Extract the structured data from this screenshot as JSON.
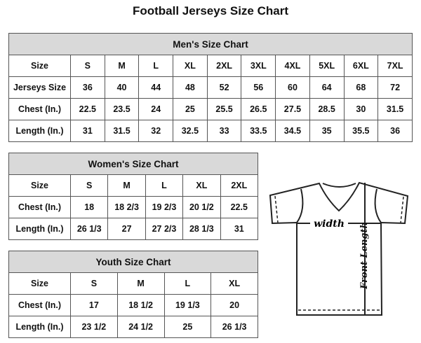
{
  "title": "Football Jerseys Size Chart",
  "men": {
    "caption": "Men's Size Chart",
    "rows": [
      [
        "Size",
        "S",
        "M",
        "L",
        "XL",
        "2XL",
        "3XL",
        "4XL",
        "5XL",
        "6XL",
        "7XL"
      ],
      [
        "Jerseys Size",
        "36",
        "40",
        "44",
        "48",
        "52",
        "56",
        "60",
        "64",
        "68",
        "72"
      ],
      [
        "Chest (In.)",
        "22.5",
        "23.5",
        "24",
        "25",
        "25.5",
        "26.5",
        "27.5",
        "28.5",
        "30",
        "31.5"
      ],
      [
        "Length (In.)",
        "31",
        "31.5",
        "32",
        "32.5",
        "33",
        "33.5",
        "34.5",
        "35",
        "35.5",
        "36"
      ]
    ]
  },
  "women": {
    "caption": "Women's Size Chart",
    "rows": [
      [
        "Size",
        "S",
        "M",
        "L",
        "XL",
        "2XL"
      ],
      [
        "Chest (In.)",
        "18",
        "18 2/3",
        "19 2/3",
        "20 1/2",
        "22.5"
      ],
      [
        "Length (In.)",
        "26 1/3",
        "27",
        "27 2/3",
        "28 1/3",
        "31"
      ]
    ]
  },
  "youth": {
    "caption": "Youth Size Chart",
    "rows": [
      [
        "Size",
        "S",
        "M",
        "L",
        "XL"
      ],
      [
        "Chest (In.)",
        "17",
        "18 1/2",
        "19 1/3",
        "20"
      ],
      [
        "Length (In.)",
        "23 1/2",
        "24 1/2",
        "25",
        "26 1/3"
      ]
    ]
  },
  "diagram": {
    "width_label": "width",
    "length_label": "Front Length"
  }
}
